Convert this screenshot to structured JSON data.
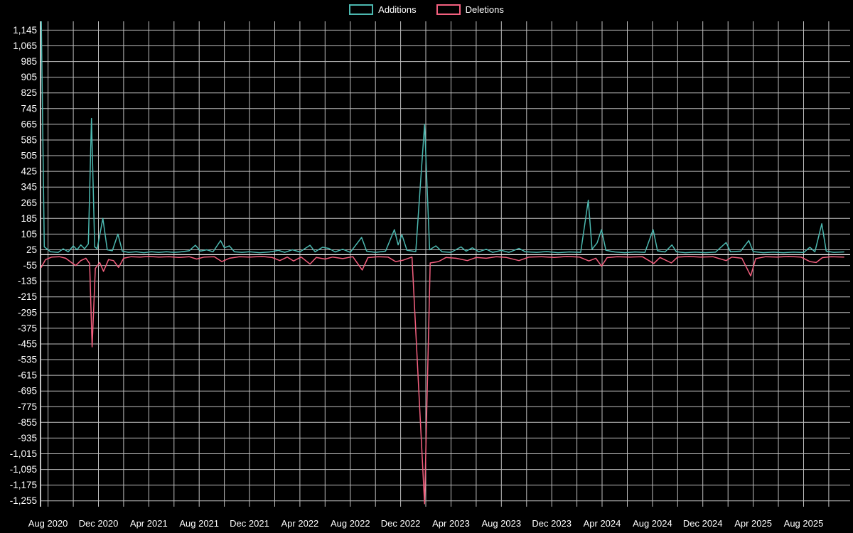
{
  "legend": {
    "additions_label": "Additions",
    "deletions_label": "Deletions"
  },
  "colors": {
    "background": "#000000",
    "grid": "#ffffff",
    "axis": "#ffffff",
    "text": "#ffffff",
    "additions": "#4cb8b0",
    "deletions": "#f4607f"
  },
  "chart_data": {
    "type": "line",
    "title": "",
    "xlabel": "",
    "ylabel": "",
    "legend_position": "top-center",
    "grid": true,
    "style": {
      "background": "#000000",
      "grid_color": "#ffffff",
      "grid_opacity": 0.75,
      "text_color": "#ffffff"
    },
    "x_axis": {
      "tick_labels": [
        "Aug 2020",
        "Dec 2020",
        "Apr 2021",
        "Aug 2021",
        "Dec 2021",
        "Apr 2022",
        "Aug 2022",
        "Dec 2022",
        "Apr 2023",
        "Aug 2023",
        "Dec 2023",
        "Apr 2024",
        "Aug 2024",
        "Dec 2024",
        "Apr 2025",
        "Aug 2025"
      ],
      "tick_months": [
        0,
        4,
        8,
        12,
        16,
        20,
        24,
        28,
        32,
        36,
        40,
        44,
        48,
        52,
        56,
        60
      ],
      "range_months": [
        -0.6,
        63.7
      ],
      "gridline_every_months": 2
    },
    "y_axis": {
      "tick_values": [
        1145,
        1065,
        985,
        905,
        825,
        745,
        665,
        585,
        505,
        425,
        345,
        265,
        185,
        105,
        25,
        -55,
        -135,
        -215,
        -295,
        -375,
        -455,
        -535,
        -615,
        -695,
        -775,
        -855,
        -935,
        -1015,
        -1095,
        -1175,
        -1255
      ],
      "tick_labels": [
        "1,145",
        "1,065",
        "985",
        "905",
        "825",
        "745",
        "665",
        "585",
        "505",
        "425",
        "345",
        "265",
        "185",
        "105",
        "25",
        "-55",
        "-135",
        "-215",
        "-295",
        "-375",
        "-455",
        "-535",
        "-615",
        "-695",
        "-775",
        "-855",
        "-935",
        "-1,015",
        "-1,095",
        "-1,175",
        "-1,255"
      ],
      "range": [
        -1285,
        1190
      ]
    },
    "series": [
      {
        "name": "Additions",
        "color": "#4cb8b0",
        "points": [
          [
            -0.55,
            1250
          ],
          [
            -0.3,
            40
          ],
          [
            0.2,
            15
          ],
          [
            0.8,
            12
          ],
          [
            1.2,
            30
          ],
          [
            1.6,
            15
          ],
          [
            2.0,
            45
          ],
          [
            2.3,
            25
          ],
          [
            2.6,
            50
          ],
          [
            2.9,
            30
          ],
          [
            3.2,
            55
          ],
          [
            3.45,
            695
          ],
          [
            3.7,
            40
          ],
          [
            3.9,
            30
          ],
          [
            4.35,
            185
          ],
          [
            4.7,
            25
          ],
          [
            5.1,
            20
          ],
          [
            5.55,
            105
          ],
          [
            5.9,
            18
          ],
          [
            6.4,
            12
          ],
          [
            7.0,
            15
          ],
          [
            7.6,
            10
          ],
          [
            8.2,
            15
          ],
          [
            8.8,
            12
          ],
          [
            9.4,
            15
          ],
          [
            10.0,
            12
          ],
          [
            10.6,
            15
          ],
          [
            11.2,
            20
          ],
          [
            11.7,
            48
          ],
          [
            12.1,
            18
          ],
          [
            12.6,
            25
          ],
          [
            13.1,
            15
          ],
          [
            13.7,
            72
          ],
          [
            14.0,
            35
          ],
          [
            14.4,
            45
          ],
          [
            14.8,
            15
          ],
          [
            15.4,
            12
          ],
          [
            16.0,
            15
          ],
          [
            16.8,
            10
          ],
          [
            17.6,
            14
          ],
          [
            18.3,
            22
          ],
          [
            18.8,
            12
          ],
          [
            19.4,
            25
          ],
          [
            20.0,
            14
          ],
          [
            20.8,
            48
          ],
          [
            21.2,
            15
          ],
          [
            21.8,
            38
          ],
          [
            22.3,
            32
          ],
          [
            22.8,
            14
          ],
          [
            23.4,
            28
          ],
          [
            24.0,
            12
          ],
          [
            24.9,
            88
          ],
          [
            25.3,
            18
          ],
          [
            26.0,
            12
          ],
          [
            26.8,
            18
          ],
          [
            27.5,
            128
          ],
          [
            27.8,
            50
          ],
          [
            28.1,
            102
          ],
          [
            28.5,
            22
          ],
          [
            29.2,
            16
          ],
          [
            29.9,
            665
          ],
          [
            30.3,
            25
          ],
          [
            30.8,
            45
          ],
          [
            31.3,
            15
          ],
          [
            32.0,
            12
          ],
          [
            32.8,
            40
          ],
          [
            33.2,
            18
          ],
          [
            33.7,
            35
          ],
          [
            34.2,
            15
          ],
          [
            34.8,
            28
          ],
          [
            35.3,
            12
          ],
          [
            36.0,
            22
          ],
          [
            36.6,
            12
          ],
          [
            37.4,
            32
          ],
          [
            37.9,
            15
          ],
          [
            38.8,
            12
          ],
          [
            39.6,
            16
          ],
          [
            40.5,
            10
          ],
          [
            41.4,
            14
          ],
          [
            42.3,
            12
          ],
          [
            42.9,
            278
          ],
          [
            43.2,
            28
          ],
          [
            43.6,
            60
          ],
          [
            43.95,
            128
          ],
          [
            44.3,
            22
          ],
          [
            45.0,
            14
          ],
          [
            45.8,
            10
          ],
          [
            46.6,
            14
          ],
          [
            47.4,
            12
          ],
          [
            48.05,
            128
          ],
          [
            48.4,
            20
          ],
          [
            49.0,
            14
          ],
          [
            49.55,
            50
          ],
          [
            49.9,
            15
          ],
          [
            50.6,
            10
          ],
          [
            51.4,
            13
          ],
          [
            52.2,
            10
          ],
          [
            53.0,
            13
          ],
          [
            53.85,
            62
          ],
          [
            54.2,
            15
          ],
          [
            55.0,
            18
          ],
          [
            55.65,
            72
          ],
          [
            56.0,
            16
          ],
          [
            56.8,
            10
          ],
          [
            57.6,
            13
          ],
          [
            58.4,
            10
          ],
          [
            59.2,
            13
          ],
          [
            60.0,
            11
          ],
          [
            60.5,
            38
          ],
          [
            60.9,
            15
          ],
          [
            61.45,
            158
          ],
          [
            61.8,
            18
          ],
          [
            62.4,
            12
          ],
          [
            63.2,
            14
          ]
        ]
      },
      {
        "name": "Deletions",
        "color": "#f4607f",
        "points": [
          [
            -0.55,
            -65
          ],
          [
            -0.2,
            -25
          ],
          [
            0.3,
            -12
          ],
          [
            0.9,
            -10
          ],
          [
            1.4,
            -18
          ],
          [
            1.9,
            -42
          ],
          [
            2.2,
            -55
          ],
          [
            2.6,
            -30
          ],
          [
            3.0,
            -18
          ],
          [
            3.3,
            -45
          ],
          [
            3.5,
            -470
          ],
          [
            3.75,
            -70
          ],
          [
            4.1,
            -40
          ],
          [
            4.4,
            -85
          ],
          [
            4.8,
            -25
          ],
          [
            5.2,
            -30
          ],
          [
            5.6,
            -65
          ],
          [
            6.0,
            -18
          ],
          [
            6.6,
            -10
          ],
          [
            7.3,
            -12
          ],
          [
            8.0,
            -9
          ],
          [
            8.8,
            -12
          ],
          [
            9.6,
            -10
          ],
          [
            10.4,
            -14
          ],
          [
            11.2,
            -10
          ],
          [
            11.8,
            -22
          ],
          [
            12.4,
            -12
          ],
          [
            13.2,
            -10
          ],
          [
            13.8,
            -35
          ],
          [
            14.4,
            -18
          ],
          [
            15.2,
            -10
          ],
          [
            16.0,
            -12
          ],
          [
            17.0,
            -9
          ],
          [
            17.8,
            -14
          ],
          [
            18.4,
            -30
          ],
          [
            19.0,
            -12
          ],
          [
            19.5,
            -32
          ],
          [
            20.1,
            -12
          ],
          [
            20.8,
            -48
          ],
          [
            21.3,
            -14
          ],
          [
            22.0,
            -22
          ],
          [
            22.6,
            -12
          ],
          [
            23.4,
            -20
          ],
          [
            24.2,
            -10
          ],
          [
            24.95,
            -78
          ],
          [
            25.4,
            -15
          ],
          [
            26.2,
            -10
          ],
          [
            27.0,
            -12
          ],
          [
            27.6,
            -35
          ],
          [
            28.2,
            -28
          ],
          [
            28.9,
            -12
          ],
          [
            29.9,
            -1270
          ],
          [
            30.35,
            -42
          ],
          [
            31.0,
            -35
          ],
          [
            31.6,
            -14
          ],
          [
            32.4,
            -18
          ],
          [
            33.3,
            -30
          ],
          [
            34.0,
            -14
          ],
          [
            34.8,
            -18
          ],
          [
            35.6,
            -10
          ],
          [
            36.4,
            -14
          ],
          [
            37.4,
            -30
          ],
          [
            38.2,
            -12
          ],
          [
            39.2,
            -10
          ],
          [
            40.2,
            -14
          ],
          [
            41.2,
            -9
          ],
          [
            42.2,
            -12
          ],
          [
            42.95,
            -32
          ],
          [
            43.5,
            -18
          ],
          [
            43.95,
            -58
          ],
          [
            44.4,
            -15
          ],
          [
            45.2,
            -10
          ],
          [
            46.2,
            -12
          ],
          [
            47.2,
            -10
          ],
          [
            48.1,
            -45
          ],
          [
            48.6,
            -14
          ],
          [
            49.5,
            -42
          ],
          [
            50.0,
            -12
          ],
          [
            50.9,
            -9
          ],
          [
            51.8,
            -12
          ],
          [
            52.8,
            -10
          ],
          [
            53.85,
            -30
          ],
          [
            54.3,
            -12
          ],
          [
            55.1,
            -18
          ],
          [
            55.8,
            -108
          ],
          [
            56.2,
            -20
          ],
          [
            57.0,
            -10
          ],
          [
            57.9,
            -12
          ],
          [
            58.8,
            -9
          ],
          [
            59.8,
            -12
          ],
          [
            60.5,
            -35
          ],
          [
            61.0,
            -40
          ],
          [
            61.5,
            -15
          ],
          [
            62.2,
            -10
          ],
          [
            63.2,
            -12
          ]
        ]
      }
    ]
  }
}
